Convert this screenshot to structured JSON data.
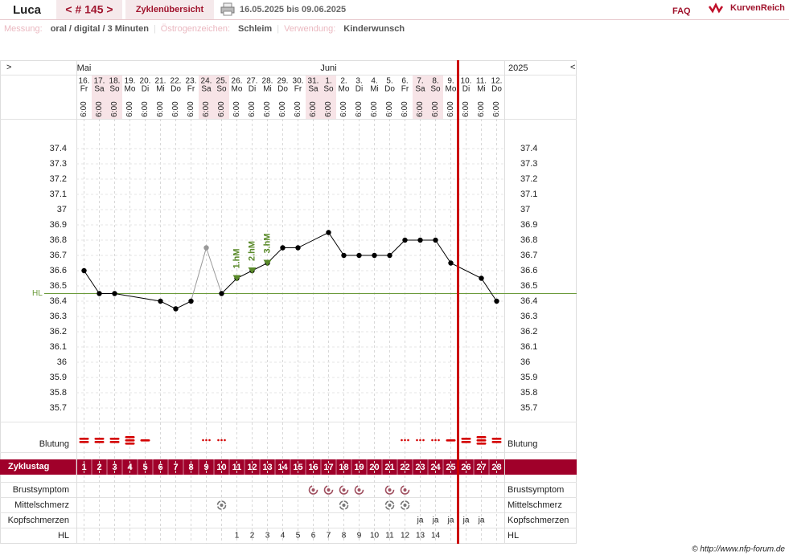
{
  "header": {
    "name": "Luca",
    "cycle": "< # 145 >",
    "overview": "Zyklenübersicht",
    "range": "16.05.2025 bis 09.06.2025",
    "faq": "FAQ",
    "brand": "KurvenReich"
  },
  "settings": [
    {
      "label": "Messung:",
      "value": "oral / digital / 3 Minuten"
    },
    {
      "label": "Östrogenzeichen:",
      "value": "Schleim"
    },
    {
      "label": "Verwendung:",
      "value": "Kinderwunsch"
    }
  ],
  "separator": "|",
  "nav": {
    "left": ">",
    "right": "<",
    "year": "2025"
  },
  "months": [
    {
      "label": "Mai",
      "day": 1
    },
    {
      "label": "Juni",
      "day": 17
    }
  ],
  "columns": {
    "dates": [
      "16.",
      "17.",
      "18.",
      "19.",
      "20.",
      "21.",
      "22.",
      "23.",
      "24.",
      "25.",
      "26.",
      "27.",
      "28.",
      "29.",
      "30.",
      "31.",
      "1.",
      "2.",
      "3.",
      "4.",
      "5.",
      "6.",
      "7.",
      "8.",
      "9.",
      "10.",
      "11.",
      "12."
    ],
    "weekdays": [
      "Fr",
      "Sa",
      "So",
      "Mo",
      "Di",
      "Mi",
      "Do",
      "Fr",
      "Sa",
      "So",
      "Mo",
      "Di",
      "Mi",
      "Do",
      "Fr",
      "Sa",
      "So",
      "Mo",
      "Di",
      "Mi",
      "Do",
      "Fr",
      "Sa",
      "So",
      "Mo",
      "Di",
      "Mi",
      "Do"
    ],
    "time": "6:00"
  },
  "chart_data": {
    "type": "line",
    "xlabel": "Zyklustag",
    "xlim": [
      0.5,
      28.5
    ],
    "xticks": [
      1,
      2,
      3,
      4,
      5,
      6,
      7,
      8,
      9,
      10,
      11,
      12,
      13,
      14,
      15,
      16,
      17,
      18,
      19,
      20,
      21,
      22,
      23,
      24,
      25,
      26,
      27,
      28
    ],
    "ylim": [
      35.6,
      37.6
    ],
    "yticks": [
      35.7,
      35.8,
      35.9,
      36,
      36.1,
      36.2,
      36.3,
      36.4,
      36.5,
      36.6,
      36.7,
      36.8,
      36.9,
      37,
      37.1,
      37.2,
      37.3,
      37.4
    ],
    "grid": true,
    "series": [
      {
        "color": "#000000",
        "x": [
          1,
          2,
          3,
          6,
          7,
          8,
          9,
          10,
          11,
          12,
          13,
          14,
          15,
          17,
          18,
          19,
          20,
          21,
          22,
          23,
          24,
          25,
          27,
          28
        ],
        "values": [
          36.6,
          36.45,
          36.45,
          36.4,
          36.35,
          36.4,
          null,
          36.45,
          36.55,
          36.6,
          36.65,
          36.75,
          36.75,
          36.85,
          36.7,
          36.7,
          36.7,
          36.7,
          36.8,
          36.8,
          36.8,
          36.65,
          36.55,
          36.4
        ]
      },
      {
        "color": "#999999",
        "x": [
          9
        ],
        "values": [
          36.75
        ]
      }
    ],
    "coverline": {
      "value": 36.45,
      "label": "HL",
      "color": "#6a9a3a"
    },
    "markers": {
      "color": "#5a8a2a",
      "items": [
        {
          "x": 11,
          "label": "1.hM"
        },
        {
          "x": 12,
          "label": "2.hM"
        },
        {
          "x": 13,
          "label": "3.hM"
        }
      ]
    }
  },
  "rows": {
    "blutung": {
      "label": "Blutung",
      "color": "#d40000",
      "days": [
        1,
        2,
        3,
        4,
        5,
        9,
        10,
        22,
        23,
        24,
        25,
        26,
        27,
        28
      ],
      "levels": [
        2,
        2,
        2,
        3,
        1,
        0,
        0,
        0,
        0,
        0,
        1,
        2,
        3,
        2
      ]
    },
    "brustsymptom": {
      "label": "Brustsymptom",
      "color": "#a05060",
      "days": [
        16,
        17,
        18,
        19,
        21,
        22
      ]
    },
    "mittelschmerz": {
      "label": "Mittelschmerz",
      "color": "#777777",
      "days": [
        10,
        18,
        21,
        22
      ]
    },
    "kopfschmerzen": {
      "label": "Kopfschmerzen",
      "mark": "ja",
      "days": [
        23,
        24,
        25,
        26,
        27
      ]
    },
    "hl": {
      "label": "HL",
      "days": [
        11,
        12,
        13,
        14,
        15,
        16,
        17,
        18,
        19,
        20,
        21,
        22,
        23,
        24
      ],
      "values": [
        1,
        2,
        3,
        4,
        5,
        6,
        7,
        8,
        9,
        10,
        11,
        12,
        13,
        14
      ]
    }
  },
  "copyright": "© http://www.nfp-forum.de"
}
